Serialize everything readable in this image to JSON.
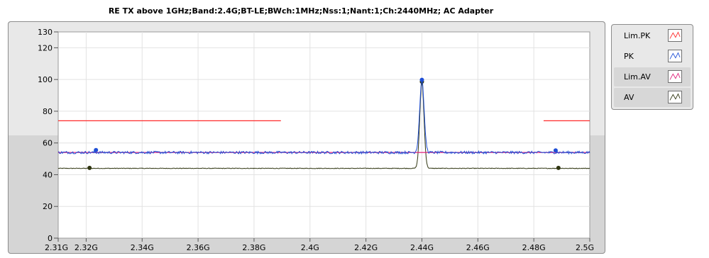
{
  "chart_data": {
    "type": "line",
    "title": "RE TX above 1GHz;Band:2.4G;BT-LE;BWch:1MHz;Nss:1;Nant:1;Ch:2440MHz; AC Adapter",
    "xlabel": "",
    "ylabel": "",
    "xlim": [
      2.31,
      2.5
    ],
    "ylim": [
      0,
      130
    ],
    "x_ticks": [
      2.31,
      2.32,
      2.34,
      2.36,
      2.38,
      2.4,
      2.42,
      2.44,
      2.46,
      2.48,
      2.5
    ],
    "x_tick_labels": [
      "2.31G",
      "2.32G",
      "2.34G",
      "2.36G",
      "2.38G",
      "2.4G",
      "2.42G",
      "2.44G",
      "2.46G",
      "2.48G",
      "2.5G"
    ],
    "y_ticks": [
      0,
      20,
      40,
      60,
      80,
      100,
      120,
      130
    ],
    "y_tick_labels": [
      "0",
      "20",
      "40",
      "60",
      "80",
      "100",
      "120",
      "130"
    ],
    "grid": true,
    "legend_position": "right",
    "series": [
      {
        "name": "Lim.PK",
        "color": "#ff2a2a",
        "segments": [
          {
            "x": [
              2.31,
              2.3896
            ],
            "y": [
              74,
              74
            ]
          },
          {
            "x": [
              2.4835,
              2.5
            ],
            "y": [
              74,
              74
            ]
          }
        ]
      },
      {
        "name": "PK",
        "color": "#1f4fd6",
        "baseline": 54,
        "peak_center": 2.44,
        "peak_value": 99.8,
        "peak_width": 0.0011,
        "markers": [
          {
            "x": 2.3235,
            "y": 55.5
          },
          {
            "x": 2.44,
            "y": 99.8
          },
          {
            "x": 2.4878,
            "y": 55.3
          }
        ]
      },
      {
        "name": "Lim.AV",
        "color": "#e0207a",
        "segments": [
          {
            "x": [
              2.31,
              2.5
            ],
            "y": [
              54,
              54
            ]
          }
        ]
      },
      {
        "name": "AV",
        "color": "#2f3510",
        "baseline": 44,
        "peak_center": 2.44,
        "peak_value": 98.6,
        "peak_width": 0.00105,
        "markers": [
          {
            "x": 2.3212,
            "y": 44.3
          },
          {
            "x": 2.44,
            "y": 98.6
          },
          {
            "x": 2.4888,
            "y": 44.3
          }
        ]
      }
    ],
    "legend": [
      {
        "label": "Lim.PK",
        "color": "#ff2a2a"
      },
      {
        "label": "PK",
        "color": "#1f4fd6"
      },
      {
        "label": "Lim.AV",
        "color": "#e0207a"
      },
      {
        "label": "AV",
        "color": "#2f3510"
      }
    ]
  }
}
